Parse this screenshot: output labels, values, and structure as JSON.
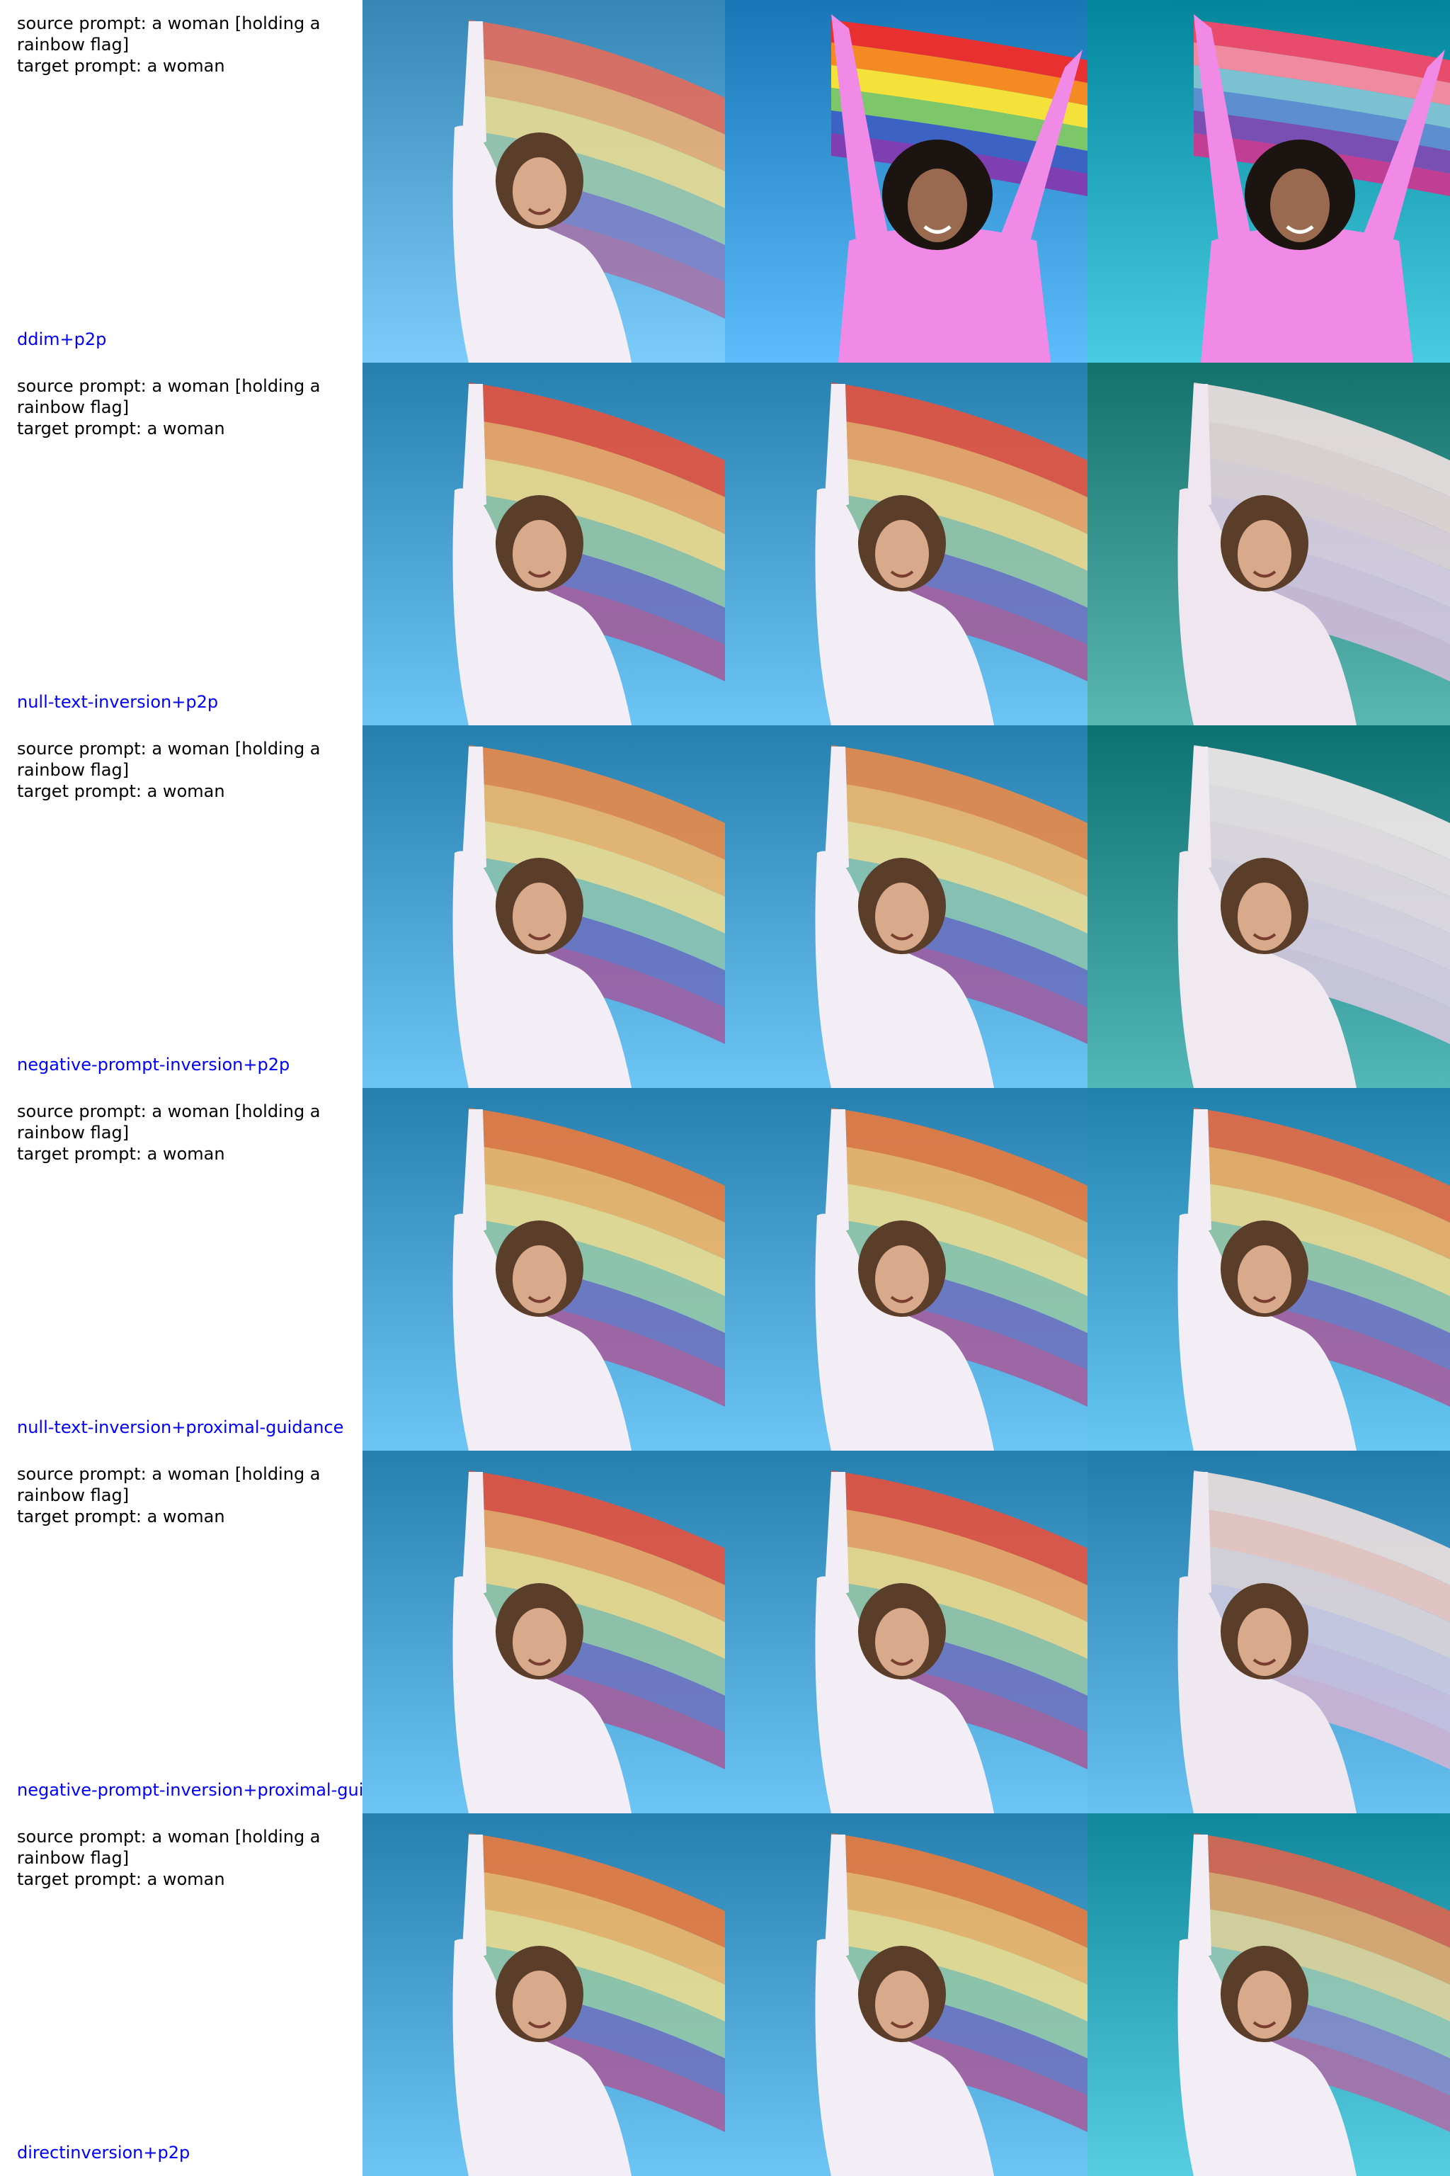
{
  "source_prompt": "source prompt: a woman [holding a rainbow flag]",
  "target_prompt": "target prompt: a woman",
  "rows": [
    {
      "method": "ddim+p2p",
      "images": [
        {
          "variant": "original",
          "sky": "#4f9fce",
          "flag": [
            "#ee6a55",
            "#f4b070",
            "#f2df8e",
            "#9dc8a8",
            "#7e7ec4",
            "#a771a8"
          ],
          "flag_opacity": 0.85,
          "shirt": "#f3eef6",
          "hair": "#5a3e2a"
        },
        {
          "variant": "pink-shirt",
          "sky": "#2f8fcf",
          "flag": [
            "#e7302f",
            "#f68a22",
            "#f4e23b",
            "#7dc66a",
            "#3c63c4",
            "#7f3fb3"
          ],
          "flag_opacity": 1.0,
          "shirt": "#f08ae6",
          "hair": "#1c1410"
        },
        {
          "variant": "pink-shirt",
          "sky": "#1a9fb4",
          "flag": [
            "#e84b6b",
            "#f08aa0",
            "#7cc1d1",
            "#5d8fd0",
            "#7a4fb3",
            "#c03f94"
          ],
          "flag_opacity": 1.0,
          "shirt": "#f08ae6",
          "hair": "#1c1410"
        }
      ]
    },
    {
      "method": "null-text-inversion+p2p",
      "images": [
        {
          "variant": "original",
          "sky": "#3f98c8",
          "flag": [
            "#e7523e",
            "#f1a461",
            "#f0d98a",
            "#94c4a4",
            "#6f74c0",
            "#a25e9c"
          ],
          "flag_opacity": 0.9,
          "shirt": "#f3eef6",
          "hair": "#5a3e2a"
        },
        {
          "variant": "original",
          "sky": "#3f98c8",
          "flag": [
            "#e7523e",
            "#f1a461",
            "#f0d98a",
            "#94c4a4",
            "#6f74c0",
            "#a25e9c"
          ],
          "flag_opacity": 0.9,
          "shirt": "#f3eef6",
          "hair": "#5a3e2a"
        },
        {
          "variant": "white-flag",
          "sky": "#2e8a84",
          "flag": [
            "#e8dede",
            "#e2d4d6",
            "#dcd0d8",
            "#d6cce0",
            "#cfc4de",
            "#c9bad6"
          ],
          "flag_opacity": 0.95,
          "shirt": "#efe6ef",
          "hair": "#5a3e2a"
        }
      ]
    },
    {
      "method": "negative-prompt-inversion+p2p",
      "images": [
        {
          "variant": "original",
          "sky": "#3f98c8",
          "flag": [
            "#ea8a4a",
            "#f2b86a",
            "#eedd92",
            "#8cc4b0",
            "#6a72c2",
            "#9d5ea4"
          ],
          "flag_opacity": 0.9,
          "shirt": "#f3eef6",
          "hair": "#5a3e2a"
        },
        {
          "variant": "original",
          "sky": "#3f98c8",
          "flag": [
            "#ea8a4a",
            "#f2b86a",
            "#eedd92",
            "#8cc4b0",
            "#6a72c2",
            "#9d5ea4"
          ],
          "flag_opacity": 0.9,
          "shirt": "#f3eef6",
          "hair": "#5a3e2a"
        },
        {
          "variant": "white-flag",
          "sky": "#278a8a",
          "flag": [
            "#ece6e6",
            "#e6dfe2",
            "#e1d9e0",
            "#dad3e0",
            "#d4cde0",
            "#cec6dc"
          ],
          "flag_opacity": 0.95,
          "shirt": "#f0e9f0",
          "hair": "#5a3e2a"
        }
      ]
    },
    {
      "method": "null-text-inversion+proximal-guidance",
      "images": [
        {
          "variant": "original",
          "sky": "#3f98c8",
          "flag": [
            "#ea7b3e",
            "#f2b566",
            "#eede90",
            "#94c7a8",
            "#6f74c0",
            "#a45f9e"
          ],
          "flag_opacity": 0.9,
          "shirt": "#f3eef6",
          "hair": "#5a3e2a"
        },
        {
          "variant": "original",
          "sky": "#3f98c8",
          "flag": [
            "#ea7b3e",
            "#f2b566",
            "#eede90",
            "#94c7a8",
            "#6f74c0",
            "#a45f9e"
          ],
          "flag_opacity": 0.9,
          "shirt": "#f3eef6",
          "hair": "#5a3e2a"
        },
        {
          "variant": "original",
          "sky": "#3a9ac6",
          "flag": [
            "#e86a44",
            "#f1ae62",
            "#efdb8e",
            "#97c6a6",
            "#7275bf",
            "#a45f9e"
          ],
          "flag_opacity": 0.9,
          "shirt": "#f3eef6",
          "hair": "#5a3e2a"
        }
      ]
    },
    {
      "method": "negative-prompt-inversion+proximal-guidance",
      "images": [
        {
          "variant": "original",
          "sky": "#3f98c8",
          "flag": [
            "#e7523e",
            "#f1a461",
            "#f0d98a",
            "#94c4a4",
            "#6f74c0",
            "#a25e9c"
          ],
          "flag_opacity": 0.9,
          "shirt": "#f3eef6",
          "hair": "#5a3e2a"
        },
        {
          "variant": "original",
          "sky": "#3f98c8",
          "flag": [
            "#e7523e",
            "#f1a461",
            "#f0d98a",
            "#94c4a4",
            "#6f74c0",
            "#a25e9c"
          ],
          "flag_opacity": 0.9,
          "shirt": "#f3eef6",
          "hair": "#5a3e2a"
        },
        {
          "variant": "white-flag",
          "sky": "#3b94c4",
          "flag": [
            "#e6dcdc",
            "#e9c7c3",
            "#d9d2d8",
            "#c9c8e0",
            "#c7bede",
            "#c9b3d4"
          ],
          "flag_opacity": 0.95,
          "shirt": "#f0e8f0",
          "hair": "#5a3e2a"
        }
      ]
    },
    {
      "method": "directinversion+p2p",
      "images": [
        {
          "variant": "original",
          "sky": "#3f98c8",
          "flag": [
            "#ea7b3e",
            "#f2b566",
            "#eede90",
            "#94c7a8",
            "#6f74c0",
            "#a45f9e"
          ],
          "flag_opacity": 0.9,
          "shirt": "#f3eef6",
          "hair": "#5a3e2a"
        },
        {
          "variant": "original",
          "sky": "#3f98c8",
          "flag": [
            "#ea7b3e",
            "#f2b566",
            "#eede90",
            "#94c7a8",
            "#6f74c0",
            "#a45f9e"
          ],
          "flag_opacity": 0.9,
          "shirt": "#f3eef6",
          "hair": "#5a3e2a"
        },
        {
          "variant": "original",
          "sky": "#2aa0b4",
          "flag": [
            "#e8624a",
            "#f0a868",
            "#eed79a",
            "#9ec9b2",
            "#8a86c8",
            "#b06aa8"
          ],
          "flag_opacity": 0.85,
          "shirt": "#f3eef6",
          "hair": "#5a3e2a"
        }
      ]
    }
  ]
}
